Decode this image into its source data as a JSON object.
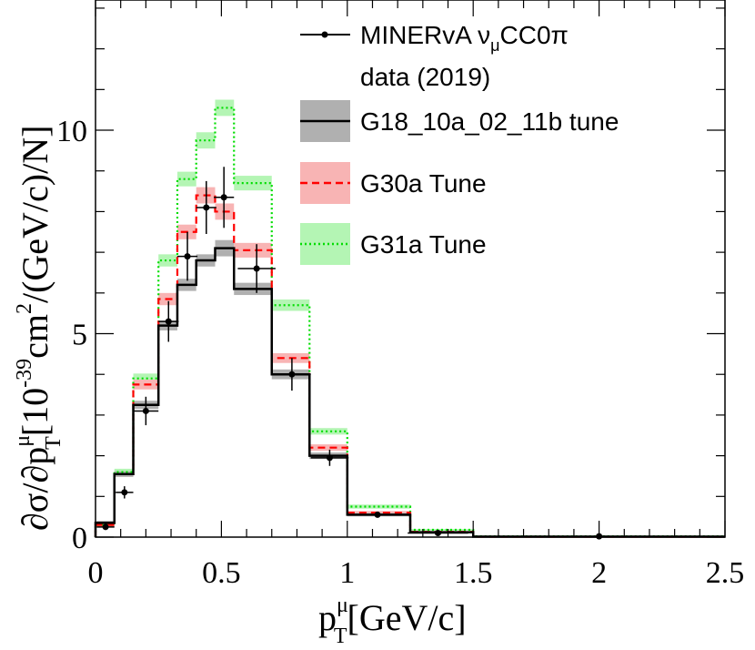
{
  "chart_data": {
    "type": "line",
    "xlabel": "p",
    "xlabel_sup": "μ",
    "xlabel_sub": "T",
    "xlabel_unit": "[GeV/c]",
    "ylabel_part1": "∂σ/∂p",
    "ylabel_sup1": "μ",
    "ylabel_sub1": "T",
    "ylabel_part2": "[10",
    "ylabel_sup2": "-39",
    "ylabel_part3": "cm",
    "ylabel_sup3": "2",
    "ylabel_part4": "/(GeV/c)/N]",
    "xlim": [
      0,
      2.5
    ],
    "ylim": [
      0,
      13.2
    ],
    "xticks": [
      0,
      0.5,
      1,
      1.5,
      2,
      2.5
    ],
    "xtick_labels": [
      "0",
      "0.5",
      "1",
      "1.5",
      "2",
      "2.5"
    ],
    "yticks": [
      0,
      5,
      10
    ],
    "ytick_labels": [
      "0",
      "5",
      "10"
    ],
    "bin_edges": [
      0,
      0.075,
      0.15,
      0.25,
      0.325,
      0.4,
      0.475,
      0.55,
      0.7,
      0.85,
      1.0,
      1.25,
      1.5,
      2.5
    ],
    "legend": {
      "data_label": "MINERvA ",
      "data_nu": "ν",
      "data_sub": "μ",
      "data_rest": "CC0π",
      "data_line2": "data (2019)",
      "g18_label": "G18_10a_02_11b tune",
      "g30_label": "G30a Tune",
      "g31_label": "G31a Tune"
    },
    "data_points": {
      "name": "MINERvA νμCC0π data (2019)",
      "x": [
        0.04,
        0.115,
        0.2,
        0.29,
        0.365,
        0.44,
        0.51,
        0.64,
        0.78,
        0.93,
        1.12,
        1.36,
        2.0
      ],
      "y": [
        0.25,
        1.1,
        3.1,
        5.3,
        6.9,
        8.1,
        8.35,
        6.6,
        4.0,
        1.95,
        0.55,
        0.1,
        0.02
      ],
      "yerr": [
        0.05,
        0.15,
        0.35,
        0.5,
        0.6,
        0.65,
        0.75,
        0.6,
        0.4,
        0.2,
        0.07,
        0.03,
        0.01
      ],
      "xerr": [
        0.035,
        0.035,
        0.05,
        0.04,
        0.04,
        0.04,
        0.04,
        0.075,
        0.075,
        0.075,
        0.12,
        0.12,
        0.5
      ],
      "color": "#000000"
    },
    "series": [
      {
        "name": "G18_10a_02_11b tune",
        "values": [
          0.35,
          1.55,
          3.25,
          5.2,
          6.2,
          6.8,
          7.1,
          6.1,
          4.0,
          2.0,
          0.55,
          0.12,
          0.01
        ],
        "band": [
          0.05,
          0.07,
          0.1,
          0.12,
          0.15,
          0.15,
          0.2,
          0.15,
          0.12,
          0.08,
          0.04,
          0.02,
          0.01
        ],
        "color": "#000000",
        "band_color": "#b0b0b0",
        "dash": "solid"
      },
      {
        "name": "G30a Tune",
        "values": [
          0.3,
          1.55,
          3.75,
          5.85,
          7.5,
          8.4,
          8.0,
          7.05,
          4.4,
          2.2,
          0.6,
          0.13,
          0.01
        ],
        "band": [
          0.05,
          0.07,
          0.12,
          0.15,
          0.18,
          0.2,
          0.2,
          0.18,
          0.12,
          0.08,
          0.04,
          0.02,
          0.01
        ],
        "color": "#ff0000",
        "band_color": "#f8b4b4",
        "dash": "8,5"
      },
      {
        "name": "G31a Tune",
        "values": [
          0.3,
          1.6,
          3.9,
          6.8,
          8.8,
          9.75,
          10.55,
          8.7,
          5.7,
          2.6,
          0.75,
          0.18,
          0.02
        ],
        "band": [
          0.05,
          0.08,
          0.12,
          0.15,
          0.18,
          0.2,
          0.2,
          0.18,
          0.14,
          0.08,
          0.05,
          0.02,
          0.01
        ],
        "color": "#00dd00",
        "band_color": "#b4f5b4",
        "dash": "2,3"
      }
    ]
  }
}
